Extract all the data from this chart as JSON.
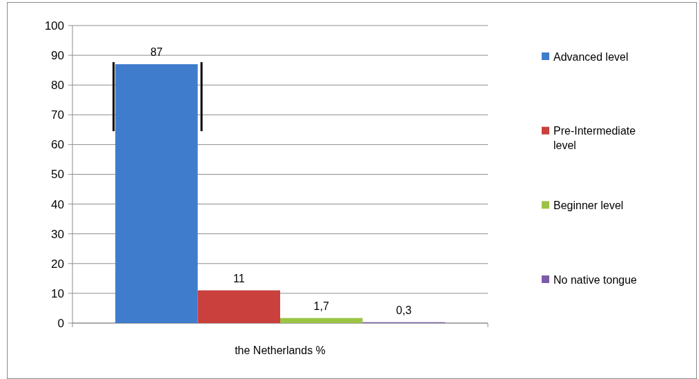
{
  "chart_data": {
    "type": "bar",
    "categories": [
      "the Netherlands %"
    ],
    "series": [
      {
        "name": "Advanced level",
        "color": "#3f7ccc",
        "values": [
          87
        ],
        "value_labels": [
          "87"
        ]
      },
      {
        "name": "Pre-Intermediate level",
        "color": "#c9403d",
        "values": [
          11
        ],
        "value_labels": [
          "11"
        ]
      },
      {
        "name": "Beginner level",
        "color": "#9bc447",
        "values": [
          1.7
        ],
        "value_labels": [
          "1,7"
        ]
      },
      {
        "name": "No native tongue",
        "color": "#7d5ca8",
        "values": [
          0.3
        ],
        "value_labels": [
          "0,3"
        ]
      }
    ],
    "ylim": [
      0,
      100
    ],
    "yticks": [
      0,
      10,
      20,
      30,
      40,
      50,
      60,
      70,
      80,
      90,
      100
    ],
    "grid": "y",
    "legend": "right"
  }
}
